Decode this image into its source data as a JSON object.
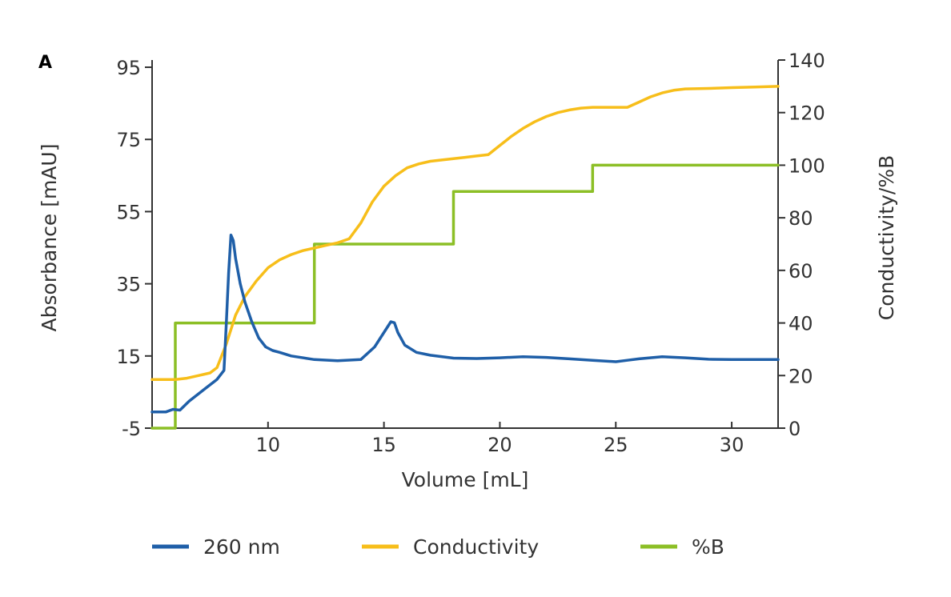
{
  "chart_data": {
    "type": "line",
    "panel_label": "A",
    "xlabel": "Volume [mL]",
    "ylabel": "Absorbance [mAU]",
    "y2label": "Conductivity/%B",
    "xlim": [
      5,
      32
    ],
    "ylim": [
      -5,
      97
    ],
    "y2lim": [
      0,
      140
    ],
    "x_ticks": [
      "10",
      "15",
      "20",
      "25",
      "30"
    ],
    "y_ticks": [
      "-5",
      "15",
      "35",
      "55",
      "75",
      "95"
    ],
    "y2_ticks": [
      "0",
      "20",
      "40",
      "60",
      "80",
      "100",
      "120",
      "140"
    ],
    "grid": false,
    "legend_position": "bottom",
    "series": [
      {
        "name": "260 nm",
        "axis": "left",
        "color": "#1f5fa8",
        "x": [
          5,
          5.6,
          5.9,
          6.2,
          6.6,
          7.2,
          7.8,
          8.1,
          8.2,
          8.3,
          8.4,
          8.5,
          8.6,
          8.8,
          9.0,
          9.3,
          9.6,
          9.9,
          10.2,
          10.5,
          11.0,
          12.0,
          13.0,
          14.0,
          14.6,
          15.0,
          15.3,
          15.45,
          15.6,
          15.9,
          16.4,
          17.0,
          18.0,
          19.0,
          20.0,
          21.0,
          22.0,
          23.0,
          24.0,
          25.0,
          25.5,
          26.0,
          27.0,
          28.0,
          29.0,
          30.0,
          31.0,
          32.0
        ],
        "values": [
          -0.5,
          -0.5,
          0.2,
          0.0,
          2.5,
          5.5,
          8.5,
          11.0,
          24.0,
          38.0,
          48.5,
          47.0,
          42.0,
          35.0,
          30.0,
          24.5,
          20.0,
          17.5,
          16.5,
          16.0,
          15.0,
          14.0,
          13.7,
          14.0,
          17.5,
          21.5,
          24.5,
          24.2,
          21.5,
          18.0,
          16.0,
          15.2,
          14.4,
          14.3,
          14.5,
          14.8,
          14.6,
          14.2,
          13.8,
          13.4,
          13.8,
          14.2,
          14.8,
          14.5,
          14.1,
          14.0,
          14.0,
          14.0
        ]
      },
      {
        "name": "Conductivity",
        "axis": "right",
        "color": "#f7be1a",
        "x": [
          5,
          6,
          6.5,
          7,
          7.5,
          7.8,
          8.2,
          8.6,
          9.0,
          9.5,
          10.0,
          10.5,
          11.0,
          11.5,
          12.0,
          12.5,
          13.0,
          13.5,
          14.0,
          14.5,
          15.0,
          15.5,
          16.0,
          16.5,
          17.0,
          17.5,
          18.0,
          18.5,
          19.0,
          19.5,
          20.0,
          20.5,
          21.0,
          21.5,
          22.0,
          22.5,
          23.0,
          23.5,
          24.0,
          24.5,
          25.0,
          25.5,
          26.0,
          26.5,
          27.0,
          27.5,
          28.0,
          29.0,
          30.0,
          31.0,
          32.0
        ],
        "values": [
          18.5,
          18.5,
          19.0,
          20.0,
          21.0,
          23.0,
          32.0,
          43.0,
          50.0,
          56.0,
          61.0,
          64.0,
          66.0,
          67.5,
          68.5,
          69.5,
          70.5,
          72.0,
          78.0,
          86.0,
          92.0,
          96.0,
          99.0,
          100.5,
          101.5,
          102.0,
          102.5,
          103.0,
          103.5,
          104.0,
          107.5,
          111.0,
          114.0,
          116.5,
          118.5,
          120.0,
          121.0,
          121.7,
          122.0,
          122.0,
          122.0,
          122.0,
          124.0,
          126.0,
          127.5,
          128.5,
          129.0,
          129.2,
          129.5,
          129.7,
          130.0
        ]
      },
      {
        "name": "%B",
        "axis": "right",
        "color": "#8cbf26",
        "x": [
          5,
          6.0,
          6.0,
          12.0,
          12.0,
          18.0,
          18.0,
          24.0,
          24.0,
          32.0
        ],
        "values": [
          0.0,
          0.0,
          40.0,
          40.0,
          70.0,
          70.0,
          90.0,
          90.0,
          100.0,
          100.0
        ]
      }
    ]
  }
}
